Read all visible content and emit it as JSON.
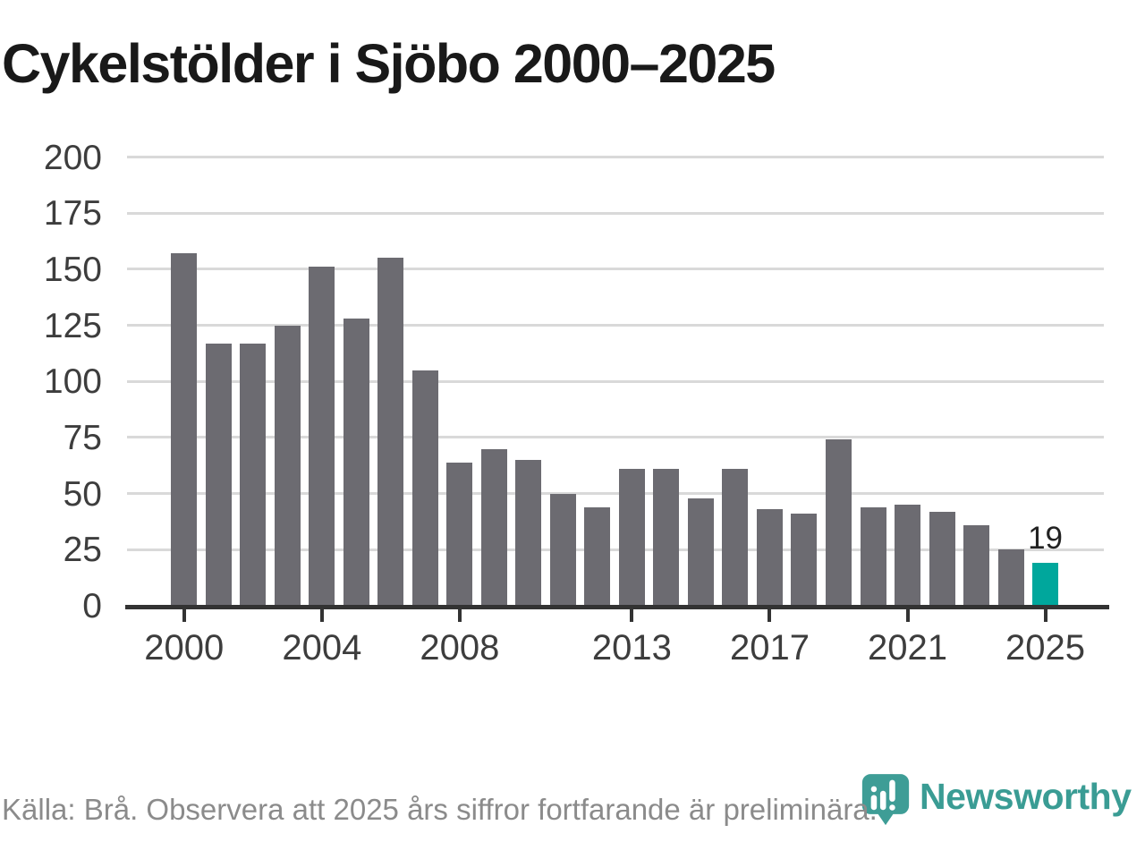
{
  "title": "Cykelstölder i Sjöbo 2000–2025",
  "footer": {
    "source_note": "Källa: Brå. Observera att 2025 års siffror fortfarande är preliminära.",
    "brand": "Newsworthy"
  },
  "colors": {
    "bar": "#6c6b71",
    "highlight": "#00a79c",
    "brand": "#3a9c94",
    "grid": "#d9d9d9",
    "axis": "#333333",
    "title_text": "#191919",
    "axis_text": "#3d3d3d",
    "footer_text": "#8b8b8b",
    "annotation_text": "#222222"
  },
  "icons": {
    "logo": "newsworthy-speech-bubble-bar-chart"
  },
  "chart_data": {
    "type": "bar",
    "title": "Cykelstölder i Sjöbo 2000–2025",
    "xlabel": "",
    "ylabel": "",
    "categories": [
      2000,
      2001,
      2002,
      2003,
      2004,
      2005,
      2006,
      2007,
      2008,
      2009,
      2010,
      2011,
      2012,
      2013,
      2014,
      2015,
      2016,
      2017,
      2018,
      2019,
      2020,
      2021,
      2022,
      2023,
      2024,
      2025
    ],
    "values": [
      157,
      117,
      117,
      125,
      151,
      128,
      155,
      105,
      64,
      70,
      65,
      50,
      44,
      61,
      61,
      48,
      61,
      43,
      41,
      74,
      44,
      45,
      42,
      36,
      25,
      19
    ],
    "ylim": [
      0,
      200
    ],
    "yticks": [
      0,
      25,
      50,
      75,
      100,
      125,
      150,
      175,
      200
    ],
    "xtick_labels": [
      "2000",
      "2004",
      "2008",
      "2013",
      "2017",
      "2021",
      "2025"
    ],
    "xtick_years": [
      2000,
      2004,
      2008,
      2013,
      2017,
      2021,
      2025
    ],
    "grid": true,
    "legend": false,
    "highlight_category": 2025,
    "annotation": {
      "category": 2025,
      "label": "19"
    }
  }
}
